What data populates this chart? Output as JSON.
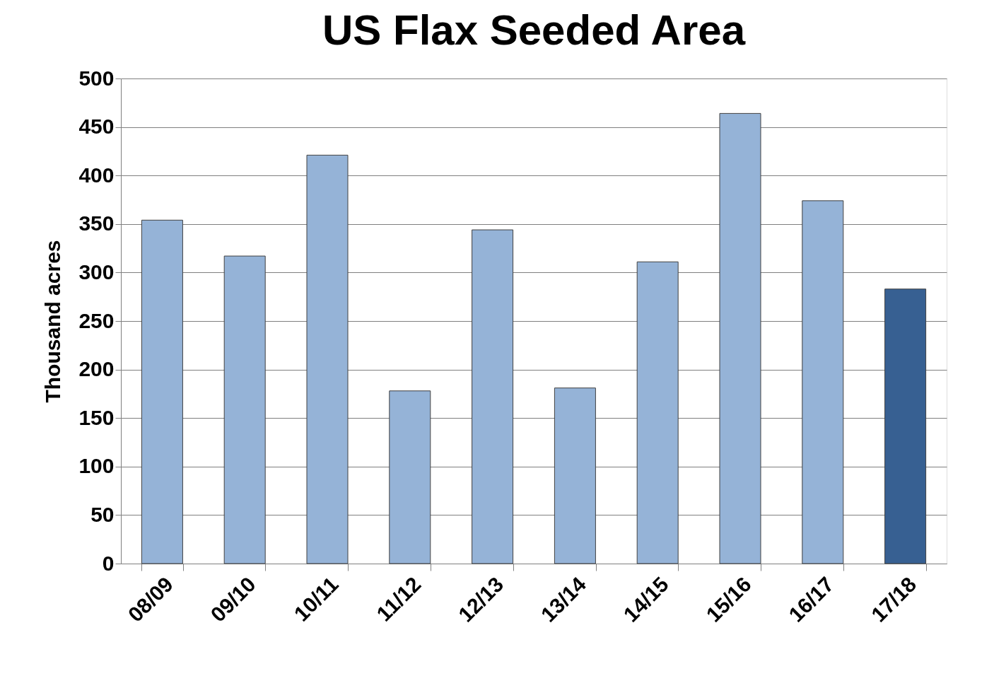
{
  "chart_data": {
    "type": "bar",
    "title": "US Flax Seeded Area",
    "ylabel": "Thousand acres",
    "categories": [
      "08/09",
      "09/10",
      "10/11",
      "11/12",
      "12/13",
      "13/14",
      "14/15",
      "15/16",
      "16/17",
      "17/18"
    ],
    "values": [
      354,
      317,
      421,
      178,
      344,
      181,
      311,
      464,
      374,
      283
    ],
    "colors": [
      "#95b3d7",
      "#95b3d7",
      "#95b3d7",
      "#95b3d7",
      "#95b3d7",
      "#95b3d7",
      "#95b3d7",
      "#95b3d7",
      "#95b3d7",
      "#376092"
    ],
    "ylim": [
      0,
      500
    ],
    "yticks": [
      0,
      50,
      100,
      150,
      200,
      250,
      300,
      350,
      400,
      450,
      500
    ],
    "grid": "y"
  }
}
